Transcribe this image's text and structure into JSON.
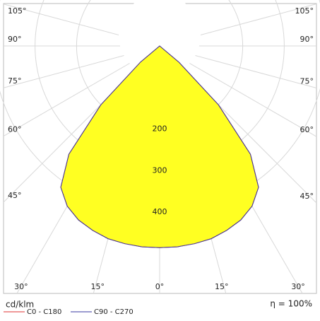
{
  "chart_data": {
    "type": "polar",
    "unit_label": "cd/klm",
    "efficiency": "η = 100%",
    "angle_ticks": [
      {
        "value": 0,
        "label": "0°"
      },
      {
        "value": 15,
        "label": "15°"
      },
      {
        "value": 30,
        "label": "30°"
      },
      {
        "value": 45,
        "label": "45°"
      },
      {
        "value": 60,
        "label": "60°"
      },
      {
        "value": 75,
        "label": "75°"
      },
      {
        "value": 90,
        "label": "90°"
      },
      {
        "value": 105,
        "label": "105°"
      }
    ],
    "rticks": [
      200,
      300,
      400
    ],
    "angles": [
      -55,
      -50,
      -45,
      -40,
      -35,
      -30,
      -25,
      -20,
      -15,
      -10,
      -5,
      0,
      5,
      10,
      15,
      20,
      25,
      30,
      35,
      40,
      45,
      50,
      55
    ],
    "series": [
      {
        "name": "C0 - C180",
        "color": "#e03030",
        "values": [
          0,
          60,
          200,
          340,
          415,
          445,
          462,
          472,
          480,
          483,
          485,
          485,
          485,
          483,
          480,
          472,
          462,
          445,
          415,
          340,
          200,
          60,
          0
        ]
      },
      {
        "name": "C90 - C270",
        "color": "#3a3aa0",
        "values": [
          0,
          60,
          200,
          340,
          415,
          445,
          462,
          472,
          480,
          483,
          485,
          485,
          485,
          483,
          480,
          472,
          462,
          445,
          415,
          340,
          200,
          60,
          0
        ]
      }
    ],
    "fill": "#ffff22"
  }
}
